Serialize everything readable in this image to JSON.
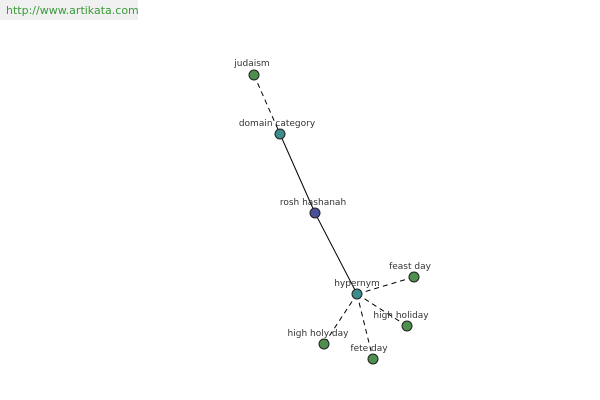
{
  "header": {
    "url": "http://www.artikata.com"
  },
  "nodes": [
    {
      "label": "judaism"
    },
    {
      "label": "domain category"
    },
    {
      "label": "rosh hashanah"
    },
    {
      "label": "hypernym"
    },
    {
      "label": "feast day"
    },
    {
      "label": "high holiday"
    },
    {
      "label": "high holy day"
    },
    {
      "label": "fete day"
    }
  ]
}
